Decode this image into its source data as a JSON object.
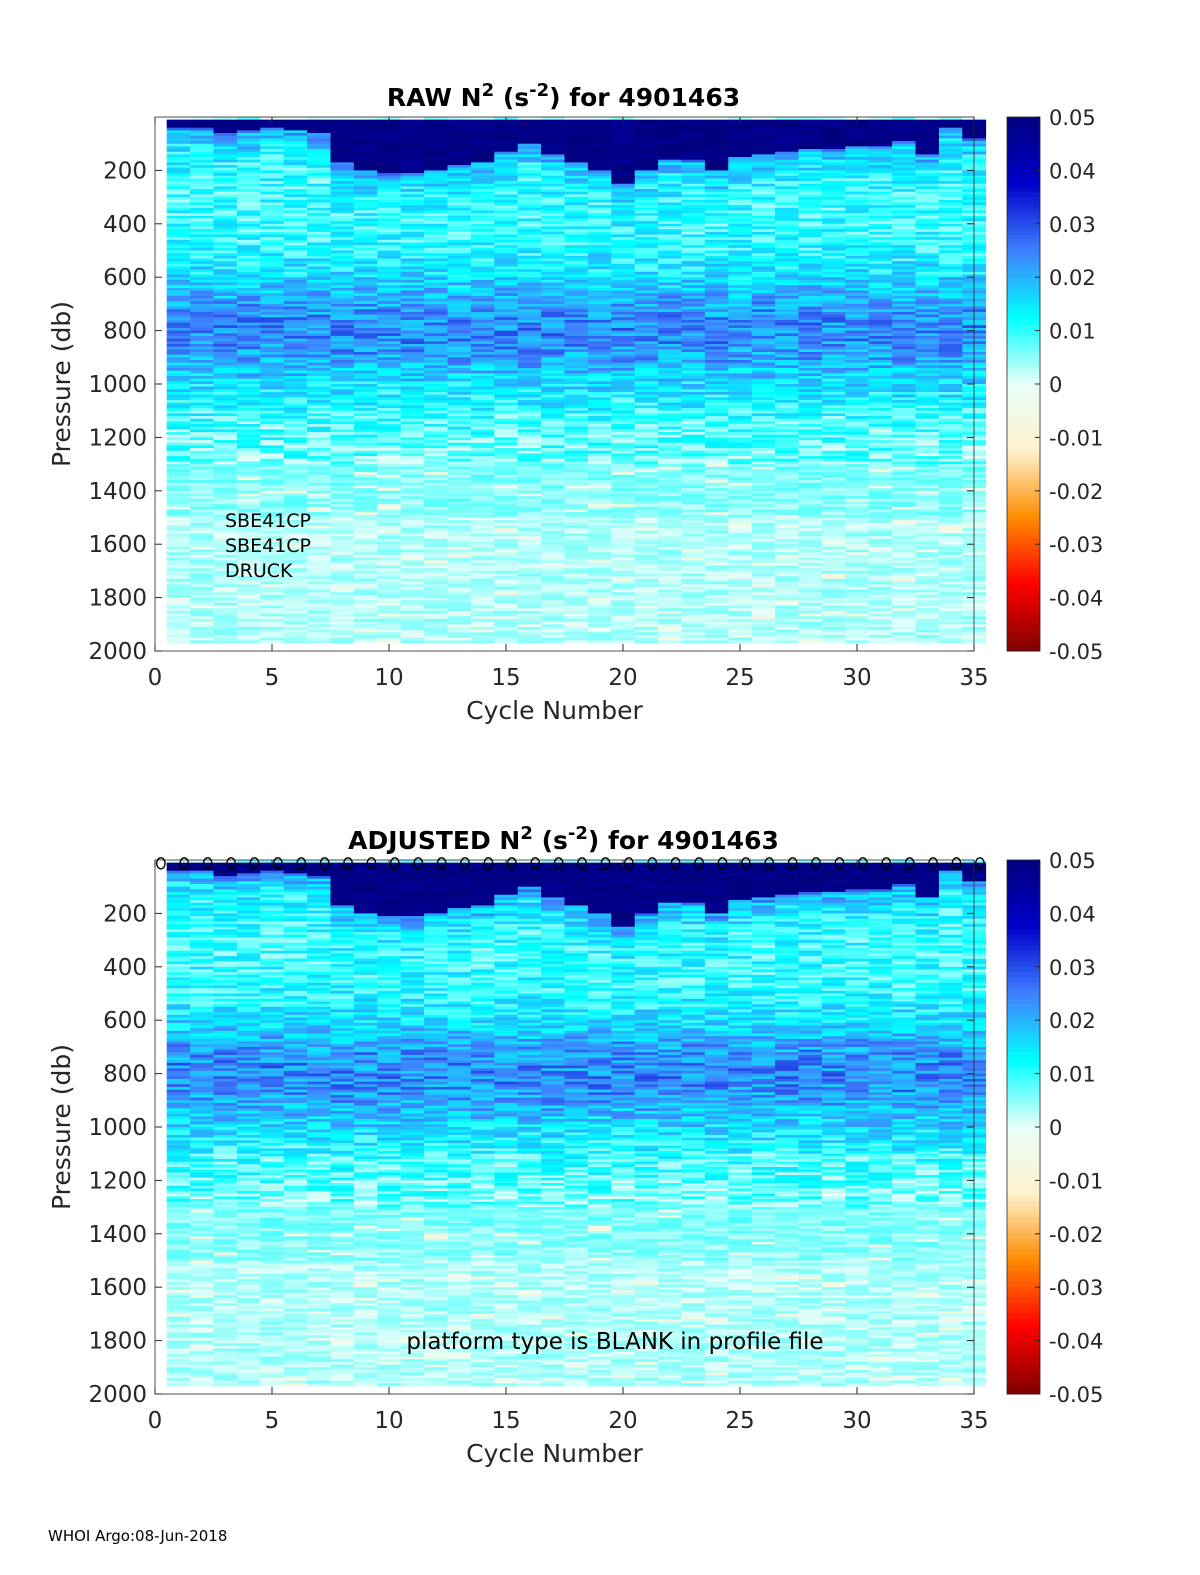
{
  "footer": "WHOI Argo:08-Jun-2018",
  "chart_data": [
    {
      "type": "heatmap",
      "title": {
        "prefix": "RAW N",
        "sup1": "2",
        "mid": " (s",
        "sup2": "-2",
        "suffix": ") for 4901463"
      },
      "xlabel": "Cycle Number",
      "ylabel": "Pressure (db)",
      "xlim": [
        0,
        35
      ],
      "ylim": [
        2000,
        0
      ],
      "y_reversed": true,
      "xticks": [
        0,
        5,
        10,
        15,
        20,
        25,
        30,
        35
      ],
      "yticks": [
        200,
        400,
        600,
        800,
        1000,
        1200,
        1400,
        1600,
        1800,
        2000
      ],
      "cycles": [
        1,
        35
      ],
      "colorbar": {
        "range": [
          -0.05,
          0.05
        ],
        "ticks": [
          "0.05",
          "0.04",
          "0.03",
          "0.02",
          "0.01",
          "0",
          "-0.01",
          "-0.02",
          "-0.03",
          "-0.04",
          "-0.05"
        ],
        "colors": [
          "#7f0000",
          "#ff0000",
          "#ff8c00",
          "#fff2cc",
          "#e8fff8",
          "#00ffff",
          "#4080ff",
          "#0000c8",
          "#00007f"
        ]
      },
      "annotations": [
        "SBE41CP",
        "SBE41CP",
        "DRUCK"
      ],
      "markers": null,
      "mixed_layer_depth_by_cycle": [
        40,
        45,
        60,
        55,
        40,
        50,
        60,
        170,
        200,
        210,
        210,
        200,
        180,
        170,
        130,
        100,
        140,
        170,
        200,
        250,
        200,
        160,
        160,
        200,
        150,
        140,
        130,
        120,
        120,
        110,
        110,
        90,
        140,
        40,
        80
      ]
    },
    {
      "type": "heatmap",
      "title": {
        "prefix": "ADJUSTED N",
        "sup1": "2",
        "mid": " (s",
        "sup2": "-2",
        "suffix": ") for 4901463"
      },
      "xlabel": "Cycle Number",
      "ylabel": "Pressure (db)",
      "xlim": [
        0,
        35
      ],
      "ylim": [
        2000,
        0
      ],
      "y_reversed": true,
      "xticks": [
        0,
        5,
        10,
        15,
        20,
        25,
        30,
        35
      ],
      "yticks": [
        200,
        400,
        600,
        800,
        1000,
        1200,
        1400,
        1600,
        1800,
        2000
      ],
      "cycles": [
        1,
        35
      ],
      "colorbar": {
        "range": [
          -0.05,
          0.05
        ],
        "ticks": [
          "0.05",
          "0.04",
          "0.03",
          "0.02",
          "0.01",
          "0",
          "-0.01",
          "-0.02",
          "-0.03",
          "-0.04",
          "-0.05"
        ],
        "colors": [
          "#7f0000",
          "#ff0000",
          "#ff8c00",
          "#fff2cc",
          "#e8fff8",
          "#00ffff",
          "#4080ff",
          "#0000c8",
          "#00007f"
        ]
      },
      "annotations": [
        "platform type is BLANK in profile file"
      ],
      "markers": {
        "symbol": "o",
        "pressure": 5,
        "cycles": [
          0,
          1,
          2,
          3,
          4,
          5,
          6,
          7,
          8,
          9,
          10,
          11,
          12,
          13,
          14,
          15,
          16,
          17,
          18,
          19,
          20,
          21,
          22,
          23,
          24,
          25,
          26,
          27,
          28,
          29,
          30,
          31,
          32,
          33,
          34,
          35
        ]
      },
      "mixed_layer_depth_by_cycle": [
        40,
        45,
        60,
        55,
        40,
        50,
        60,
        170,
        200,
        210,
        210,
        200,
        180,
        170,
        130,
        100,
        140,
        170,
        200,
        250,
        200,
        160,
        160,
        200,
        150,
        140,
        130,
        120,
        120,
        110,
        110,
        90,
        140,
        40,
        80
      ]
    }
  ]
}
